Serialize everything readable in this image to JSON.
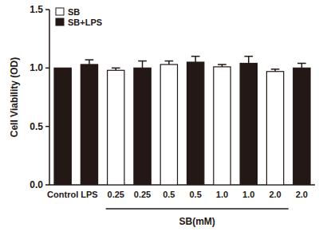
{
  "chart_data": {
    "type": "bar",
    "ylabel": "Cell Viability (OD)",
    "xlabel": "SB(mM)",
    "categories": [
      "Control",
      "LPS",
      "0.25",
      "0.25",
      "0.5",
      "0.5",
      "1.0",
      "1.0",
      "2.0",
      "2.0"
    ],
    "series": [
      {
        "name": "SB",
        "color": "#ffffff",
        "values": [
          null,
          null,
          0.98,
          null,
          1.03,
          null,
          1.01,
          null,
          0.97,
          null
        ],
        "errors": [
          null,
          null,
          0.02,
          null,
          0.03,
          null,
          0.02,
          null,
          0.02,
          null
        ]
      },
      {
        "name": "SB+LPS",
        "color": "#231815",
        "values": [
          1.0,
          1.03,
          null,
          1.0,
          null,
          1.05,
          null,
          1.04,
          null,
          1.0
        ],
        "errors": [
          null,
          0.04,
          null,
          0.06,
          null,
          0.05,
          null,
          0.06,
          null,
          0.04
        ]
      }
    ],
    "ylim": [
      0,
      1.5
    ],
    "yticks": [
      {
        "value": 0,
        "label": "0.0"
      },
      0.5,
      {
        "value": 1,
        "label": "1.0"
      },
      1.5
    ],
    "legend": "top-left",
    "grid": false
  }
}
